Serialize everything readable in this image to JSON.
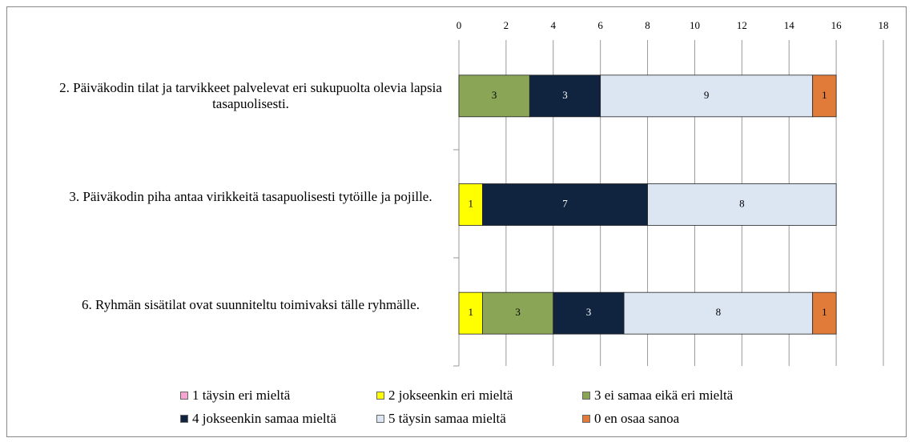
{
  "chart_data": {
    "type": "stacked-barh",
    "categories": [
      "2. Päiväkodin tilat ja tarvikkeet palvelevat eri sukupuolta olevia lapsia tasapuolisesti.",
      "3. Päiväkodin piha antaa virikkeitä tasapuolisesti tytöille ja pojille.",
      "6. Ryhmän sisätilat ovat suunniteltu toimivaksi tälle ryhmälle."
    ],
    "series": [
      {
        "name": "1 täysin eri mieltä",
        "color": "#f4a6cf",
        "values": [
          0,
          0,
          0
        ]
      },
      {
        "name": "2 jokseenkin eri mieltä",
        "color": "#ffff00",
        "values": [
          0,
          1,
          1
        ]
      },
      {
        "name": "3 ei samaa eikä eri mieltä",
        "color": "#8ba556",
        "values": [
          3,
          0,
          3
        ]
      },
      {
        "name": "4 jokseenkin samaa mieltä",
        "color": "#10233f",
        "values": [
          3,
          7,
          3
        ]
      },
      {
        "name": "5 täysin samaa mieltä",
        "color": "#dce6f2",
        "values": [
          9,
          8,
          8
        ]
      },
      {
        "name": "0 en osaa sanoa",
        "color": "#e07b39",
        "values": [
          1,
          0,
          1
        ]
      }
    ],
    "xlim": [
      0,
      18
    ],
    "xticks": [
      0,
      2,
      4,
      6,
      8,
      10,
      12,
      14,
      16,
      18
    ],
    "grid": true,
    "legend": "bottom"
  }
}
